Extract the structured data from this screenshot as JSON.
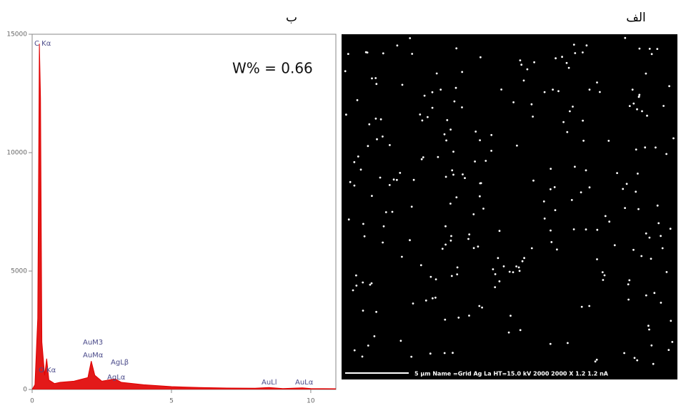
{
  "chart_data": {
    "type": "area",
    "panel_label": "ب",
    "annotation": "W% = 0.66",
    "x": [
      0.0,
      0.1,
      0.2,
      0.26,
      0.3,
      0.35,
      0.45,
      0.52,
      0.6,
      0.8,
      1.0,
      1.5,
      2.0,
      2.12,
      2.25,
      2.5,
      2.98,
      3.2,
      4.0,
      5.0,
      6.0,
      7.0,
      8.0,
      8.5,
      9.0,
      9.7,
      10.0,
      10.9
    ],
    "series": [
      {
        "color": "#e00000",
        "values": [
          0,
          200,
          3000,
          14600,
          12300,
          2000,
          600,
          1300,
          400,
          250,
          300,
          350,
          500,
          1200,
          600,
          350,
          450,
          300,
          200,
          120,
          80,
          60,
          50,
          80,
          40,
          70,
          40,
          30
        ]
      }
    ],
    "peak_labels": [
      "C Kα",
      "O Kα",
      "AuM3",
      "AuMα",
      "AgLβ",
      "AgLα",
      "AuLl",
      "AuLα"
    ],
    "xlim": [
      0,
      10.9
    ],
    "xticks": [
      0,
      5,
      10
    ],
    "ylim": [
      0,
      15000
    ],
    "yticks": [
      0,
      5000,
      10000,
      15000
    ]
  },
  "map_panel": {
    "panel_label": "الف",
    "caption": "5 µm   Name =Grid Ag La   HT=15.0 kV   2000 2000 X   1.2 1.2 nA"
  }
}
